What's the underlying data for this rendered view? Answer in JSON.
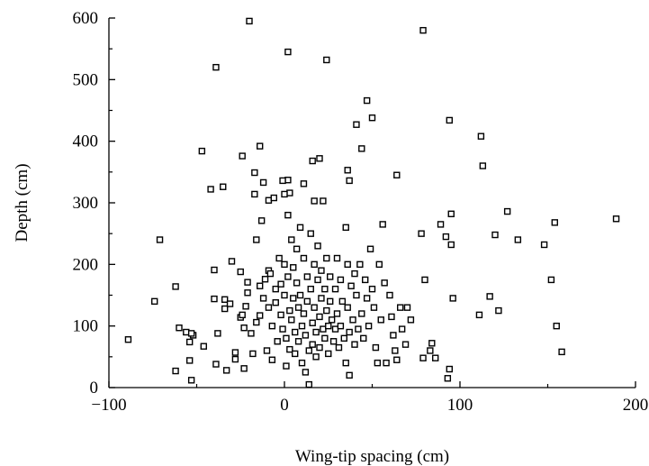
{
  "chart_data": {
    "type": "scatter",
    "xlabel": "Wing-tip spacing (cm)",
    "ylabel": "Depth (cm)",
    "xlim": [
      -100,
      200
    ],
    "ylim": [
      0,
      600
    ],
    "x_ticks": [
      -100,
      0,
      100,
      200
    ],
    "x_tick_labels": [
      "−100",
      "0",
      "100",
      "200"
    ],
    "y_ticks": [
      0,
      100,
      200,
      300,
      400,
      500,
      600
    ],
    "y_tick_labels": [
      "0",
      "100",
      "200",
      "300",
      "400",
      "500",
      "600"
    ],
    "grid": false,
    "legend": "none",
    "marker": "hollow-square",
    "series": [
      {
        "points": [
          [
            -20,
            595
          ],
          [
            79,
            580
          ],
          [
            2,
            545
          ],
          [
            24,
            532
          ],
          [
            -39,
            520
          ],
          [
            47,
            466
          ],
          [
            50,
            438
          ],
          [
            94,
            434
          ],
          [
            41,
            427
          ],
          [
            112,
            408
          ],
          [
            -14,
            392
          ],
          [
            44,
            388
          ],
          [
            -47,
            384
          ],
          [
            -24,
            376
          ],
          [
            20,
            372
          ],
          [
            16,
            368
          ],
          [
            113,
            360
          ],
          [
            36,
            353
          ],
          [
            64,
            345
          ],
          [
            -17,
            349
          ],
          [
            37,
            336
          ],
          [
            -12,
            333
          ],
          [
            2,
            337
          ],
          [
            -1,
            336
          ],
          [
            -35,
            326
          ],
          [
            -42,
            322
          ],
          [
            -17,
            314
          ],
          [
            11,
            331
          ],
          [
            3,
            316
          ],
          [
            0,
            314
          ],
          [
            -9,
            304
          ],
          [
            -6,
            308
          ],
          [
            17,
            303
          ],
          [
            22,
            303
          ],
          [
            -71,
            240
          ],
          [
            -74,
            140
          ],
          [
            -62,
            164
          ],
          [
            -89,
            78
          ],
          [
            -60,
            97
          ],
          [
            -56,
            90
          ],
          [
            -54,
            74
          ],
          [
            -52,
            85
          ],
          [
            -53,
            88
          ],
          [
            -62,
            27
          ],
          [
            -54,
            44
          ],
          [
            -53,
            12
          ],
          [
            -46,
            67
          ],
          [
            -40,
            191
          ],
          [
            -40,
            144
          ],
          [
            -38,
            88
          ],
          [
            -39,
            38
          ],
          [
            -34,
            128
          ],
          [
            -34,
            143
          ],
          [
            -30,
            205
          ],
          [
            -31,
            136
          ],
          [
            -33,
            28
          ],
          [
            -28,
            46
          ],
          [
            -28,
            57
          ],
          [
            -25,
            114
          ],
          [
            -24,
            118
          ],
          [
            -22,
            132
          ],
          [
            -25,
            188
          ],
          [
            -21,
            171
          ],
          [
            -21,
            154
          ],
          [
            -23,
            97
          ],
          [
            -23,
            31
          ],
          [
            -19,
            88
          ],
          [
            -18,
            55
          ],
          [
            -16,
            240
          ],
          [
            -16,
            106
          ],
          [
            -14,
            165
          ],
          [
            -14,
            117
          ],
          [
            -13,
            271
          ],
          [
            -12,
            145
          ],
          [
            -11,
            176
          ],
          [
            -10,
            60
          ],
          [
            -9,
            190
          ],
          [
            -9,
            130
          ],
          [
            -8,
            185
          ],
          [
            -7,
            100
          ],
          [
            -7,
            45
          ],
          [
            -5,
            160
          ],
          [
            -5,
            138
          ],
          [
            -4,
            75
          ],
          [
            -3,
            210
          ],
          [
            -2,
            168
          ],
          [
            -2,
            118
          ],
          [
            -1,
            95
          ],
          [
            0,
            200
          ],
          [
            0,
            150
          ],
          [
            1,
            80
          ],
          [
            1,
            35
          ],
          [
            2,
            280
          ],
          [
            2,
            180
          ],
          [
            3,
            125
          ],
          [
            3,
            62
          ],
          [
            4,
            240
          ],
          [
            4,
            110
          ],
          [
            5,
            195
          ],
          [
            5,
            145
          ],
          [
            6,
            90
          ],
          [
            6,
            55
          ],
          [
            7,
            225
          ],
          [
            7,
            170
          ],
          [
            8,
            130
          ],
          [
            8,
            75
          ],
          [
            9,
            260
          ],
          [
            9,
            150
          ],
          [
            10,
            100
          ],
          [
            10,
            40
          ],
          [
            11,
            210
          ],
          [
            11,
            120
          ],
          [
            12,
            85
          ],
          [
            12,
            25
          ],
          [
            13,
            180
          ],
          [
            13,
            140
          ],
          [
            14,
            60
          ],
          [
            14,
            5
          ],
          [
            15,
            250
          ],
          [
            15,
            160
          ],
          [
            16,
            105
          ],
          [
            16,
            70
          ],
          [
            17,
            200
          ],
          [
            17,
            130
          ],
          [
            18,
            90
          ],
          [
            18,
            50
          ],
          [
            19,
            230
          ],
          [
            19,
            175
          ],
          [
            20,
            115
          ],
          [
            20,
            65
          ],
          [
            21,
            190
          ],
          [
            21,
            145
          ],
          [
            22,
            95
          ],
          [
            23,
            160
          ],
          [
            23,
            80
          ],
          [
            24,
            210
          ],
          [
            24,
            125
          ],
          [
            25,
            100
          ],
          [
            25,
            55
          ],
          [
            26,
            180
          ],
          [
            26,
            140
          ],
          [
            27,
            110
          ],
          [
            28,
            75
          ],
          [
            29,
            160
          ],
          [
            29,
            95
          ],
          [
            30,
            210
          ],
          [
            30,
            120
          ],
          [
            31,
            65
          ],
          [
            32,
            175
          ],
          [
            32,
            100
          ],
          [
            33,
            140
          ],
          [
            34,
            80
          ],
          [
            35,
            260
          ],
          [
            35,
            40
          ],
          [
            36,
            200
          ],
          [
            36,
            130
          ],
          [
            37,
            90
          ],
          [
            37,
            20
          ],
          [
            38,
            165
          ],
          [
            39,
            110
          ],
          [
            40,
            185
          ],
          [
            40,
            70
          ],
          [
            41,
            150
          ],
          [
            42,
            95
          ],
          [
            43,
            200
          ],
          [
            44,
            120
          ],
          [
            45,
            80
          ],
          [
            46,
            175
          ],
          [
            47,
            145
          ],
          [
            48,
            100
          ],
          [
            49,
            225
          ],
          [
            50,
            160
          ],
          [
            51,
            130
          ],
          [
            52,
            65
          ],
          [
            53,
            40
          ],
          [
            54,
            200
          ],
          [
            55,
            110
          ],
          [
            56,
            265
          ],
          [
            57,
            170
          ],
          [
            58,
            40
          ],
          [
            60,
            150
          ],
          [
            61,
            115
          ],
          [
            62,
            85
          ],
          [
            63,
            60
          ],
          [
            64,
            45
          ],
          [
            66,
            130
          ],
          [
            67,
            95
          ],
          [
            69,
            70
          ],
          [
            70,
            130
          ],
          [
            72,
            110
          ],
          [
            78,
            250
          ],
          [
            79,
            48
          ],
          [
            80,
            175
          ],
          [
            83,
            60
          ],
          [
            84,
            72
          ],
          [
            86,
            48
          ],
          [
            89,
            265
          ],
          [
            92,
            245
          ],
          [
            93,
            15
          ],
          [
            94,
            30
          ],
          [
            95,
            282
          ],
          [
            95,
            232
          ],
          [
            96,
            145
          ],
          [
            111,
            118
          ],
          [
            117,
            148
          ],
          [
            120,
            248
          ],
          [
            122,
            125
          ],
          [
            127,
            286
          ],
          [
            133,
            240
          ],
          [
            148,
            232
          ],
          [
            152,
            175
          ],
          [
            154,
            268
          ],
          [
            155,
            100
          ],
          [
            158,
            58
          ],
          [
            189,
            274
          ]
        ]
      }
    ]
  }
}
